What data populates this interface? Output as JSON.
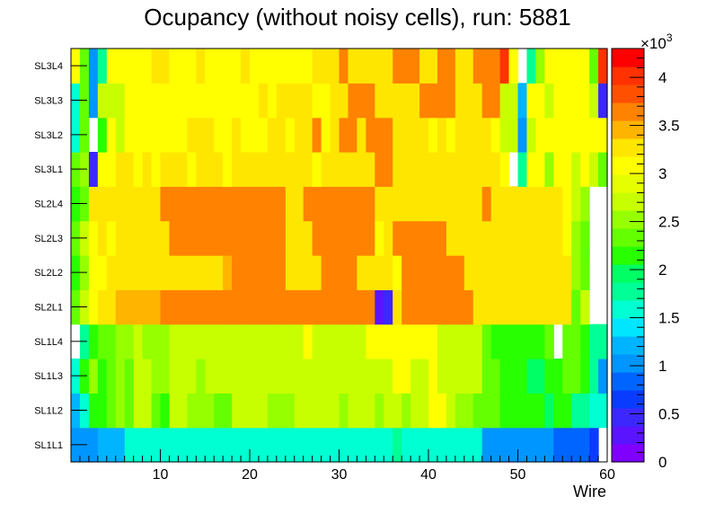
{
  "chart_data": {
    "type": "heatmap",
    "title": "Ocupancy (without noisy cells), run: 5881",
    "xlabel": "Wire",
    "ylabel": "",
    "xlim": [
      0,
      60
    ],
    "x_ticks": [
      10,
      20,
      30,
      40,
      50,
      60
    ],
    "y_categories": [
      "SL1L1",
      "SL1L2",
      "SL1L3",
      "SL1L4",
      "SL2L1",
      "SL2L2",
      "SL2L3",
      "SL2L4",
      "SL3L1",
      "SL3L2",
      "SL3L3",
      "SL3L4"
    ],
    "zlim": [
      0,
      4300
    ],
    "colorbar_exponent_label": "×10",
    "colorbar_exponent_power": "3",
    "colorbar_tick_values": [
      0,
      500,
      1000,
      1500,
      2000,
      2500,
      3000,
      3500,
      4000
    ],
    "colorbar_tick_labels": [
      "0",
      "0.5",
      "1",
      "1.5",
      "2",
      "2.5",
      "3",
      "3.5",
      "4"
    ],
    "palette": [
      "#7f00ff",
      "#5a14ff",
      "#3c28ff",
      "#0a3cff",
      "#0064ff",
      "#0096ff",
      "#00b4ff",
      "#00e6ff",
      "#00ffd2",
      "#00ff96",
      "#00ff64",
      "#28ff00",
      "#64ff00",
      "#96ff00",
      "#c8ff00",
      "#e6ff00",
      "#ffff00",
      "#ffe600",
      "#ffb400",
      "#ff8200",
      "#ff5000",
      "#ff3200",
      "#ff0000"
    ],
    "z_values": [
      [
        1100,
        1100,
        1100,
        1300,
        1300,
        1300,
        1500,
        1500,
        1500,
        1500,
        1500,
        1500,
        1500,
        1500,
        1500,
        1500,
        1500,
        1500,
        1500,
        1500,
        1500,
        1500,
        1500,
        1500,
        1500,
        1500,
        1500,
        1600,
        1500,
        1500,
        1500,
        1500,
        1500,
        1600,
        1500,
        1600,
        1800,
        1600,
        1600,
        1600,
        1600,
        1600,
        1600,
        1600,
        1500,
        1500,
        1100,
        1100,
        1100,
        1100,
        1100,
        1100,
        1100,
        1100,
        800,
        800,
        800,
        800,
        700,
        0
      ],
      [
        1300,
        1600,
        2100,
        2100,
        2300,
        2600,
        2300,
        2800,
        2800,
        2300,
        2100,
        2800,
        2800,
        2600,
        2600,
        2600,
        2300,
        2300,
        2800,
        2800,
        2800,
        2800,
        2600,
        2600,
        2600,
        2800,
        2800,
        2800,
        2800,
        2800,
        2600,
        2800,
        2800,
        2800,
        2600,
        2800,
        2800,
        2600,
        2800,
        2800,
        3000,
        3000,
        2800,
        2600,
        2600,
        2400,
        2300,
        2300,
        2100,
        2100,
        2100,
        2100,
        2100,
        1900,
        2100,
        2100,
        1700,
        1700,
        1500,
        1500
      ],
      [
        1500,
        2100,
        2600,
        2100,
        2300,
        2600,
        2300,
        2800,
        2800,
        2600,
        2600,
        2800,
        2800,
        2800,
        2600,
        2800,
        2800,
        2800,
        2800,
        2800,
        2800,
        2800,
        2800,
        2800,
        2800,
        2800,
        2800,
        2800,
        2800,
        2800,
        2800,
        2800,
        2800,
        2800,
        2800,
        2800,
        3000,
        3000,
        2800,
        2800,
        3000,
        2800,
        2800,
        2800,
        2800,
        2800,
        2300,
        2300,
        2100,
        2100,
        2100,
        2000,
        2000,
        2100,
        2100,
        2400,
        2400,
        2100,
        1700,
        1100
      ],
      [
        0,
        1800,
        2100,
        2300,
        2300,
        2600,
        2600,
        2800,
        2600,
        2600,
        2600,
        2800,
        2800,
        2800,
        2800,
        2800,
        2800,
        2800,
        2800,
        2800,
        2800,
        2800,
        2800,
        2800,
        2800,
        2800,
        3000,
        2800,
        2800,
        2800,
        2800,
        2800,
        2800,
        3000,
        3000,
        3000,
        3000,
        3000,
        3000,
        3000,
        3000,
        2800,
        2800,
        2800,
        2800,
        2800,
        2300,
        2100,
        2100,
        2100,
        2100,
        2100,
        2100,
        2300,
        0,
        2300,
        2300,
        2100,
        1800,
        1700
      ],
      [
        2300,
        2800,
        3100,
        3300,
        3300,
        3500,
        3500,
        3500,
        3500,
        3500,
        3700,
        3700,
        3700,
        3700,
        3700,
        3700,
        3700,
        3700,
        3700,
        3700,
        3700,
        3700,
        3700,
        3700,
        3700,
        3700,
        3700,
        3700,
        3700,
        3700,
        3700,
        3700,
        3700,
        3700,
        200,
        500,
        3300,
        3700,
        3700,
        3700,
        3700,
        3700,
        3700,
        3700,
        3700,
        3300,
        3300,
        3300,
        3300,
        3300,
        3300,
        3300,
        3300,
        3300,
        3300,
        3300,
        2400,
        2800,
        0,
        0
      ],
      [
        2100,
        2600,
        3000,
        3100,
        3300,
        3300,
        3300,
        3300,
        3300,
        3300,
        3300,
        3300,
        3300,
        3300,
        3300,
        3300,
        3300,
        3500,
        3700,
        3700,
        3700,
        3700,
        3700,
        3700,
        3300,
        3300,
        3300,
        3300,
        3700,
        3700,
        3700,
        3700,
        3300,
        3300,
        3300,
        3300,
        3100,
        3700,
        3700,
        3700,
        3700,
        3700,
        3700,
        3700,
        3300,
        3300,
        3300,
        3300,
        3300,
        3300,
        3300,
        3300,
        3300,
        3300,
        3300,
        3300,
        2600,
        2400,
        0,
        0
      ],
      [
        2300,
        2800,
        3000,
        3300,
        3000,
        3300,
        3300,
        3300,
        3300,
        3300,
        3300,
        3700,
        3700,
        3700,
        3700,
        3700,
        3700,
        3700,
        3700,
        3700,
        3700,
        3700,
        3700,
        3700,
        3300,
        3300,
        3300,
        3700,
        3700,
        3700,
        3700,
        3700,
        3700,
        3700,
        3100,
        3300,
        3700,
        3700,
        3700,
        3700,
        3700,
        3700,
        3300,
        3300,
        3300,
        3300,
        3300,
        3300,
        3300,
        3300,
        3300,
        3300,
        3300,
        3300,
        3300,
        3100,
        2600,
        2400,
        0,
        0
      ],
      [
        2100,
        2300,
        3300,
        3300,
        3300,
        3300,
        3300,
        3300,
        3300,
        3300,
        3700,
        3700,
        3700,
        3700,
        3700,
        3700,
        3700,
        3700,
        3700,
        3700,
        3700,
        3700,
        3700,
        3700,
        3300,
        3300,
        3700,
        3700,
        3700,
        3700,
        3700,
        3700,
        3700,
        3700,
        3300,
        3300,
        3300,
        3300,
        3300,
        3300,
        3300,
        3300,
        3300,
        3300,
        3300,
        3300,
        3700,
        3300,
        3300,
        3300,
        3300,
        3300,
        3300,
        3300,
        3300,
        3100,
        2800,
        2600,
        0,
        0
      ],
      [
        2300,
        2600,
        500,
        3000,
        3000,
        3300,
        3300,
        3000,
        3300,
        3000,
        3300,
        3300,
        3300,
        3000,
        3300,
        3300,
        3300,
        3000,
        3300,
        3300,
        3300,
        3300,
        3300,
        3300,
        3300,
        3300,
        3300,
        3000,
        3300,
        3300,
        3300,
        3300,
        3300,
        3300,
        3700,
        3700,
        3300,
        3300,
        3300,
        3300,
        3300,
        3300,
        3300,
        3300,
        3300,
        3300,
        3300,
        3300,
        3000,
        0,
        1700,
        3000,
        3000,
        2600,
        3000,
        3000,
        2800,
        3000,
        2800,
        2300
      ],
      [
        1500,
        2300,
        0,
        2100,
        3000,
        2800,
        3000,
        3000,
        3000,
        3000,
        3000,
        3000,
        3000,
        3300,
        3300,
        3300,
        3000,
        3000,
        3300,
        3000,
        3000,
        3000,
        3300,
        3300,
        3000,
        3300,
        3300,
        3600,
        3000,
        3300,
        3600,
        3600,
        3300,
        3600,
        3600,
        3600,
        3300,
        3300,
        3300,
        3300,
        3000,
        3300,
        3000,
        3300,
        3300,
        3300,
        3300,
        3000,
        2800,
        2800,
        1100,
        2800,
        3000,
        3000,
        3000,
        3000,
        3000,
        3000,
        3000,
        3000
      ],
      [
        1500,
        2300,
        1000,
        2800,
        2800,
        2800,
        3000,
        3000,
        3000,
        3000,
        3000,
        3000,
        3000,
        3000,
        3000,
        3000,
        3000,
        3000,
        3000,
        3000,
        3000,
        3300,
        3000,
        3300,
        3300,
        3300,
        3300,
        3000,
        3000,
        3300,
        3300,
        3600,
        3600,
        3600,
        3300,
        3300,
        3300,
        3300,
        3300,
        3600,
        3600,
        3600,
        3600,
        3300,
        3300,
        3300,
        3600,
        3600,
        2800,
        2800,
        1300,
        3000,
        3000,
        2800,
        3000,
        3000,
        3000,
        3000,
        2800,
        500
      ],
      [
        3000,
        2300,
        1000,
        1800,
        3000,
        3000,
        3000,
        3000,
        3000,
        3300,
        3300,
        3000,
        3000,
        3000,
        3300,
        3000,
        3000,
        3000,
        3000,
        3300,
        3000,
        3000,
        3000,
        3000,
        3000,
        3000,
        3000,
        3300,
        3300,
        3300,
        3600,
        3300,
        3300,
        3300,
        3300,
        3300,
        3600,
        3600,
        3600,
        3300,
        3300,
        3600,
        3600,
        3300,
        3300,
        3600,
        3600,
        3600,
        4000,
        3000,
        0,
        1800,
        2600,
        3000,
        3000,
        3000,
        3000,
        3000,
        2300,
        4000
      ]
    ]
  }
}
